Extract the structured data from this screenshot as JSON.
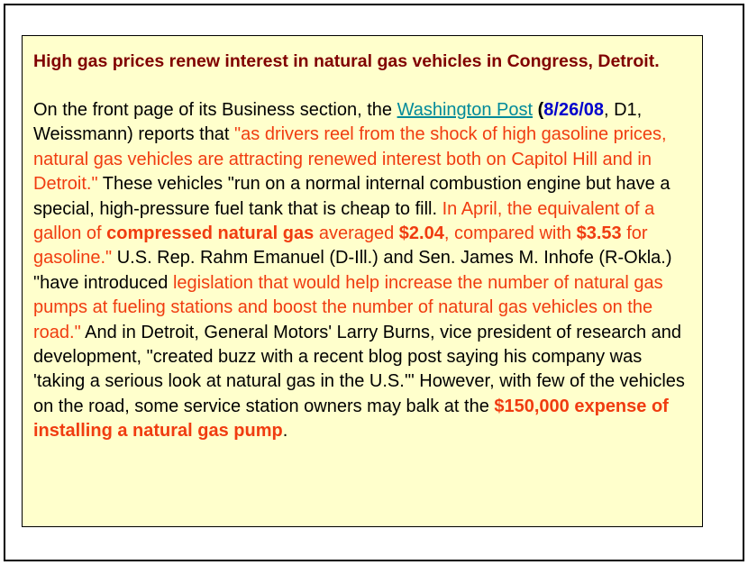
{
  "article": {
    "headline": "High gas prices renew interest in natural gas vehicles in Congress, Detroit.",
    "segments": {
      "s01": "On the front page of its Business section, the ",
      "link_text": "Washington Post",
      "s02": " ",
      "s03": "(",
      "date": "8/26/08",
      "s04": ", D1, Weissmann) reports that ",
      "q1": "\"as drivers reel from the shock of high gasoline prices, natural gas vehicles are attracting renewed interest both on Capitol Hill and in Detroit.\"",
      "s05": " These vehicles \"run on a normal internal combustion engine but have a special, high-pressure fuel tank that is cheap to fill. ",
      "q2a": "In April, the equivalent of a gallon of ",
      "q2b": "compressed natural gas",
      "q2c": " averaged ",
      "q2d": "$2.04",
      "q2e": ", compared with ",
      "q2f": "$3.53",
      "q2g": " for gasoline.\"",
      "s06": " U.S. Rep. Rahm Emanuel (D-Ill.) and Sen. James M. Inhofe (R-Okla.) \"have introduced ",
      "q3": "legislation that would help increase the number of natural gas pumps at fueling stations and boost the number of natural gas vehicles on the road.\"",
      "s07": " And in Detroit, General Motors' Larry Burns, vice president of research and development, \"created buzz with a recent blog post saying his company was 'taking a serious look at natural gas in the U.S.'\" However, with few of the vehicles on the road, some service station owners may balk at the ",
      "q4": "$150,000 expense of installing a natural gas pump",
      "s08": "."
    }
  },
  "colors": {
    "headline": "#800000",
    "highlight_red": "#f03c10",
    "date_blue": "#0000cc",
    "link_teal": "#008a9a",
    "box_background": "#ffffcc"
  }
}
